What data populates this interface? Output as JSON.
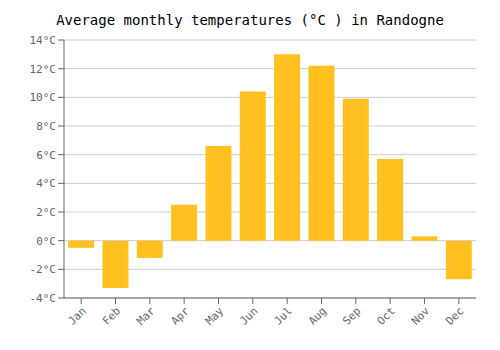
{
  "chart_data": {
    "type": "bar",
    "title": "Average monthly temperatures (°C ) in Randogne",
    "categories": [
      "Jan",
      "Feb",
      "Mar",
      "Apr",
      "May",
      "Jun",
      "Jul",
      "Aug",
      "Sep",
      "Oct",
      "Nov",
      "Dec"
    ],
    "values": [
      -0.5,
      -3.3,
      -1.2,
      2.5,
      6.6,
      10.4,
      13.0,
      12.2,
      9.9,
      5.7,
      0.3,
      -2.7
    ],
    "color": "#FFC020",
    "ylim": [
      -4,
      14
    ],
    "yticks": [
      {
        "value": -4,
        "label": "-4°C"
      },
      {
        "value": -2,
        "label": "-2°C"
      },
      {
        "value": 0,
        "label": "0°C"
      },
      {
        "value": 2,
        "label": "2°C"
      },
      {
        "value": 4,
        "label": "4°C"
      },
      {
        "value": 6,
        "label": "6°C"
      },
      {
        "value": 8,
        "label": "8°C"
      },
      {
        "value": 10,
        "label": "10°C"
      },
      {
        "value": 12,
        "label": "12°C"
      },
      {
        "value": 14,
        "label": "14°C"
      }
    ],
    "grid": true
  }
}
